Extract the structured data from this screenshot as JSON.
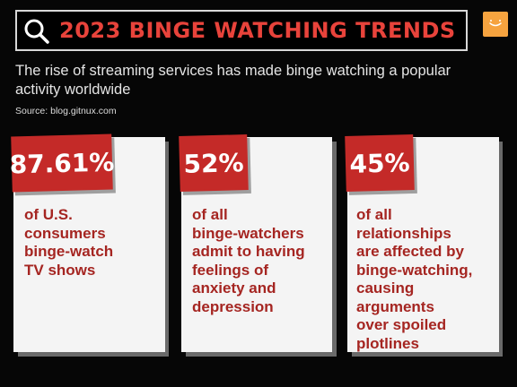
{
  "header": {
    "title": "2023 BINGE WATCHING TRENDS",
    "subtitle": "The rise of streaming services has made binge watching a popular activity worldwide",
    "source": "Source: blog.gitnux.com",
    "icon": "search-icon",
    "logo_color": "#f6a33f"
  },
  "colors": {
    "accent": "#c42a28",
    "text_red": "#a52521",
    "card_bg": "#f4f4f4"
  },
  "stats": [
    {
      "value": "87.61%",
      "lines": [
        "of U.S.",
        "consumers",
        "binge-watch",
        "TV shows"
      ]
    },
    {
      "value": "52%",
      "lines": [
        "of all",
        "binge-watchers",
        "admit to having",
        "feelings of",
        "anxiety and",
        "depression"
      ]
    },
    {
      "value": "45%",
      "lines": [
        "of all",
        "relationships",
        "are affected by",
        "binge-watching,",
        "causing",
        "arguments",
        "over spoiled",
        "plotlines"
      ]
    }
  ]
}
